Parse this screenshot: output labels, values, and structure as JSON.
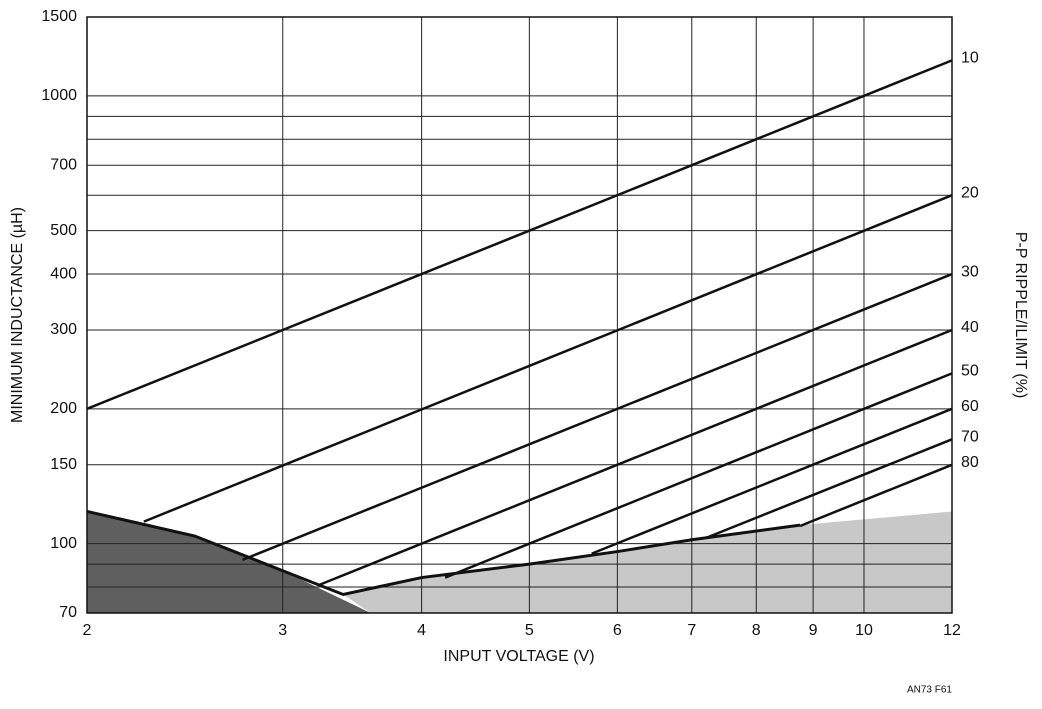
{
  "chart_data": {
    "type": "line",
    "x_label": "INPUT VOLTAGE (V)",
    "y_label": "MINIMUM INDUCTANCE (µH)",
    "y2_label": "P-P RIPPLE/ILIMIT (%)",
    "note": "AN73 F61",
    "log_x": true,
    "log_y": true,
    "grid": true,
    "xlim": [
      2,
      12
    ],
    "xticks": [
      2,
      3,
      4,
      5,
      6,
      7,
      8,
      9,
      10,
      12
    ],
    "ylim": [
      70,
      1500
    ],
    "yticks": [
      70,
      100,
      150,
      200,
      300,
      400,
      500,
      700,
      1000,
      1500
    ],
    "yticks_minor": [
      80,
      90,
      600,
      800,
      900
    ],
    "series": [
      {
        "name": "10",
        "color": "#111111",
        "x": [
          2,
          12
        ],
        "values": [
          200,
          1200
        ]
      },
      {
        "name": "20",
        "color": "#111111",
        "x": [
          2.25,
          12
        ],
        "values": [
          112,
          600
        ]
      },
      {
        "name": "30",
        "color": "#111111",
        "x": [
          2.76,
          12
        ],
        "values": [
          92,
          400
        ]
      },
      {
        "name": "40",
        "color": "#111111",
        "x": [
          3.24,
          12
        ],
        "values": [
          81,
          300
        ]
      },
      {
        "name": "50",
        "color": "#111111",
        "x": [
          4.2,
          12
        ],
        "values": [
          84,
          240
        ]
      },
      {
        "name": "60",
        "color": "#111111",
        "x": [
          5.69,
          12
        ],
        "values": [
          95,
          200
        ]
      },
      {
        "name": "70",
        "color": "#111111",
        "x": [
          7.21,
          12
        ],
        "values": [
          103,
          171
        ]
      },
      {
        "name": "80",
        "color": "#111111",
        "x": [
          8.76,
          12
        ],
        "values": [
          109.5,
          150
        ]
      }
    ],
    "boundary": {
      "color": "#111111",
      "x": [
        2,
        2.5,
        3,
        3.4,
        4,
        5,
        6,
        7,
        8.76
      ],
      "values": [
        118,
        104,
        87,
        77,
        84,
        90,
        96,
        102,
        110
      ]
    },
    "regions": [
      {
        "color": "#5f5f5f",
        "x": [
          2,
          2.5,
          3,
          3.6,
          2
        ],
        "values": [
          118,
          104,
          87,
          70,
          70
        ]
      },
      {
        "color": "#c8c8c8",
        "x": [
          3.6,
          3.4,
          4,
          5,
          6,
          7,
          8.76,
          12,
          12
        ],
        "values": [
          70,
          77,
          84,
          90,
          96,
          102,
          110,
          118,
          70
        ]
      }
    ]
  }
}
